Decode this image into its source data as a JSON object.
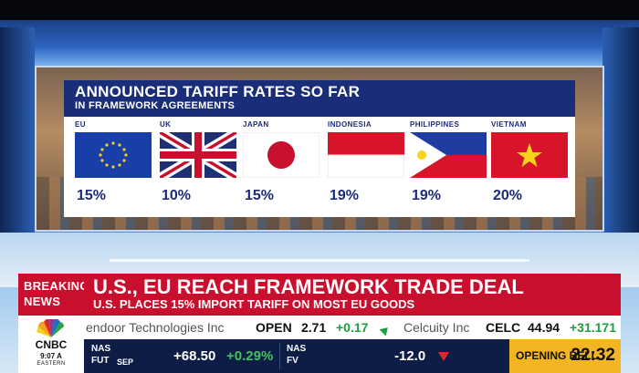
{
  "graphic": {
    "title": "ANNOUNCED TARIFF RATES SO FAR",
    "subtitle": "IN FRAMEWORK AGREEMENTS",
    "countries": [
      {
        "name": "EU",
        "rate": "15%",
        "flag": "eu-flag"
      },
      {
        "name": "UK",
        "rate": "10%",
        "flag": "uk-flag"
      },
      {
        "name": "JAPAN",
        "rate": "15%",
        "flag": "japan-flag"
      },
      {
        "name": "INDONESIA",
        "rate": "19%",
        "flag": "indonesia-flag"
      },
      {
        "name": "PHILIPPINES",
        "rate": "19%",
        "flag": "philippines-flag"
      },
      {
        "name": "VIETNAM",
        "rate": "20%",
        "flag": "vietnam-flag"
      }
    ]
  },
  "lower_third": {
    "breaking_line1": "BREAKING",
    "breaking_line2": "NEWS",
    "headline": "U.S., EU REACH FRAMEWORK TRADE DEAL",
    "subheadline": "U.S. PLACES 15% IMPORT TARIFF ON MOST EU GOODS"
  },
  "network": {
    "logo_text": "CNBC",
    "time": "9:07 A",
    "timezone": "EASTERN"
  },
  "ticker": {
    "items": [
      {
        "company": "endoor Technologies Inc",
        "symbol": "OPEN",
        "price": "2.71",
        "change": "+0.17"
      },
      {
        "company": "Celcuity Inc",
        "symbol": "CELC",
        "price": "44.94",
        "change": "+31.171"
      }
    ]
  },
  "futures": {
    "nas_fut_label1": "NAS",
    "nas_fut_label2": "FUT",
    "nas_fut_month": "SEP",
    "nas_fut_change": "+68.50",
    "nas_fut_pct": "+0.29%",
    "nas_fv_label1": "NAS",
    "nas_fv_label2": "FV",
    "nas_fv_value": "-12.0",
    "opening_bell_label": "OPENING BELL",
    "opening_bell_countdown": "22:32"
  },
  "colors": {
    "brand_navy": "#1a2d78",
    "breaking_red": "#c8102e",
    "positive_green": "#1e9d3e",
    "negative_red": "#e5232e",
    "bell_yellow": "#f3b521"
  }
}
